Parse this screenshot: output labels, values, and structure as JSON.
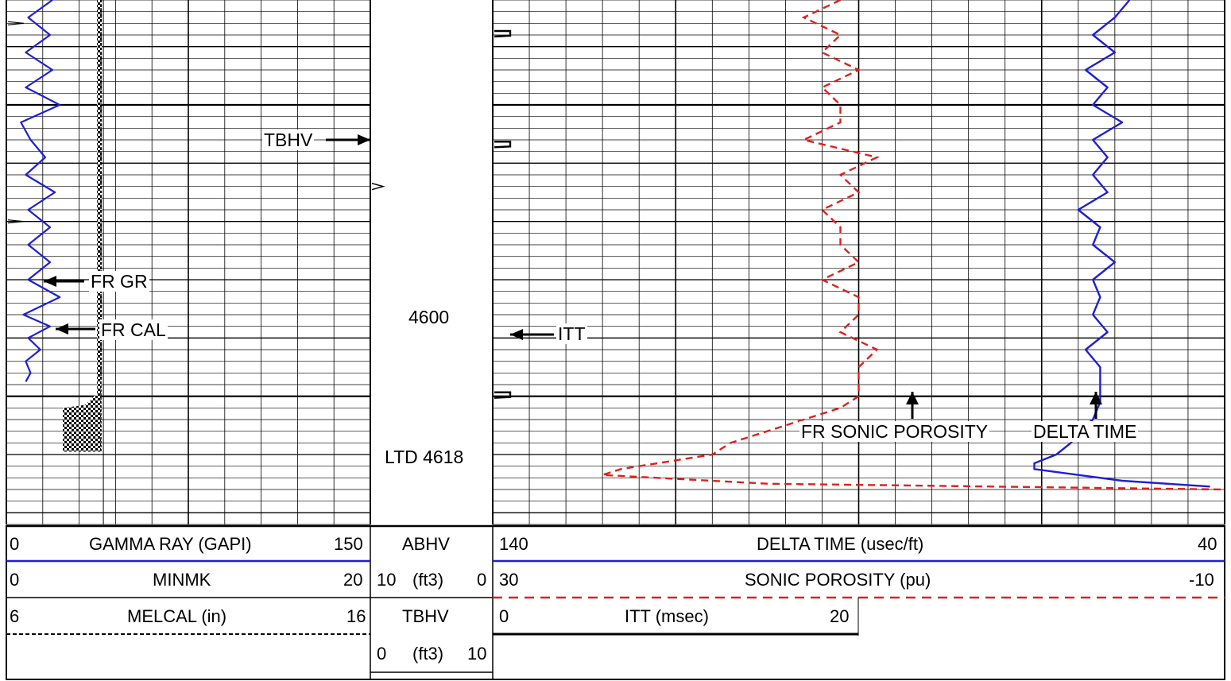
{
  "colors": {
    "gamma_ray": "#1f1fd6",
    "sonic_porosity": "#e0201c",
    "delta_time": "#1f1fd6",
    "grid": "#000000"
  },
  "depth_track": {
    "depth_label": "4600",
    "ltd_label": "LTD 4618"
  },
  "annotations": {
    "tbhv": "TBHV",
    "fr_gr": "FR GR",
    "fr_cal": "FR CAL",
    "itt": "ITT",
    "fr_sonic_porosity": "FR SONIC POROSITY",
    "delta_time": "DELTA TIME"
  },
  "header": {
    "track1": [
      {
        "left": "0",
        "name": "GAMMA RAY (GAPI)",
        "right": "150",
        "line": "solid-blue"
      },
      {
        "left": "0",
        "name": "MINMK",
        "right": "20",
        "line": "solid-black"
      },
      {
        "left": "6",
        "name": "MELCAL (in)",
        "right": "16",
        "line": "dashed-black"
      }
    ],
    "track2": [
      {
        "name": "ABHV"
      },
      {
        "left": "10",
        "name": "(ft3)",
        "right": "0"
      },
      {
        "name": "TBHV"
      },
      {
        "left": "0",
        "name": "(ft3)",
        "right": "10"
      }
    ],
    "track3": [
      {
        "left": "140",
        "name": "DELTA TIME (usec/ft)",
        "right": "40",
        "line": "solid-blue"
      },
      {
        "left": "30",
        "name": "SONIC POROSITY (pu)",
        "right": "-10",
        "line": "dashed-red"
      },
      {
        "left": "0",
        "name": "ITT (msec)",
        "right": "20",
        "line": "solid-black"
      }
    ]
  },
  "chart_data": {
    "type": "line",
    "title": "",
    "depth_unit": "ft",
    "depth_range": [
      4532,
      4622
    ],
    "grid": true,
    "depth_labels": [
      4600,
      4618
    ],
    "tracks": [
      {
        "name": "track1",
        "series": [
          {
            "name": "GAMMA RAY (GAPI)",
            "xlim": [
              0,
              150
            ],
            "style": "solid",
            "color": "#1f1fd6",
            "depth": [
              4532,
              4535,
              4538,
              4541,
              4544,
              4547,
              4550,
              4553,
              4556,
              4559,
              4562,
              4565,
              4568,
              4571,
              4574,
              4577,
              4580,
              4583,
              4586,
              4588,
              4590,
              4592,
              4594,
              4596,
              4597.5
            ],
            "values": [
              19,
              9,
              18,
              8,
              19,
              8,
              22,
              6,
              10,
              16,
              8,
              20,
              9,
              18,
              9,
              18,
              9,
              22,
              7,
              18,
              9,
              14,
              8,
              10,
              8
            ]
          },
          {
            "name": "MELCAL (in)",
            "xlim": [
              6,
              16
            ],
            "style": "dashed-black",
            "color": "#000000",
            "depth": [
              4532,
              4600
            ],
            "values": [
              8.6,
              8.6
            ]
          }
        ]
      },
      {
        "name": "track3",
        "series": [
          {
            "name": "DELTA TIME (usec/ft)",
            "xlim": [
              140,
              40
            ],
            "style": "solid",
            "color": "#1f1fd6",
            "depth": [
              4532,
              4535,
              4538,
              4541,
              4544,
              4547,
              4550,
              4553,
              4556,
              4559,
              4562,
              4565,
              4568,
              4571,
              4574,
              4577,
              4580,
              4583,
              4586,
              4589,
              4592,
              4595,
              4598,
              4601,
              4604,
              4606,
              4608,
              4610,
              4611.5,
              4612.5,
              4613.5,
              4614.5,
              4615.5
            ],
            "values": [
              53,
              55,
              58,
              55,
              59,
              56,
              58,
              54,
              58,
              56,
              58,
              56,
              60,
              57,
              58,
              55,
              58,
              57,
              58,
              56,
              59,
              57,
              57,
              57,
              58,
              60,
              61,
              63,
              66,
              66,
              60,
              54,
              42
            ]
          },
          {
            "name": "SONIC POROSITY (pu)",
            "xlim": [
              30,
              -10
            ],
            "style": "dashed",
            "color": "#e0201c",
            "depth": [
              4532,
              4535,
              4538,
              4541,
              4544,
              4547,
              4550,
              4553,
              4556,
              4559,
              4562,
              4565,
              4568,
              4571,
              4574,
              4577,
              4580,
              4583,
              4586,
              4589,
              4592,
              4595,
              4598,
              4600,
              4602,
              4604,
              4606,
              4608,
              4610,
              4611.5,
              4612.5,
              4613.5,
              4615,
              4616
            ],
            "values": [
              11,
              13,
              11,
              12,
              10,
              12,
              11,
              11,
              13,
              9,
              11,
              10,
              12,
              11,
              11,
              10,
              12,
              10,
              10,
              11,
              9,
              10,
              10,
              10,
              11,
              13,
              15,
              17,
              18,
              21,
              23,
              24,
              15,
              -10
            ]
          },
          {
            "name": "ITT (msec)",
            "xlim": [
              0,
              20
            ],
            "style": "solid-black",
            "color": "#000000",
            "ticks_depth": [
              4538,
              4557,
              4600
            ]
          }
        ]
      },
      {
        "name": "track2",
        "series": [
          {
            "name": "TBHV",
            "xlim": [
              0,
              10
            ],
            "ticks_depth": [
              4564
            ]
          },
          {
            "name": "ABHV",
            "xlim": [
              10,
              0
            ]
          }
        ]
      }
    ]
  }
}
